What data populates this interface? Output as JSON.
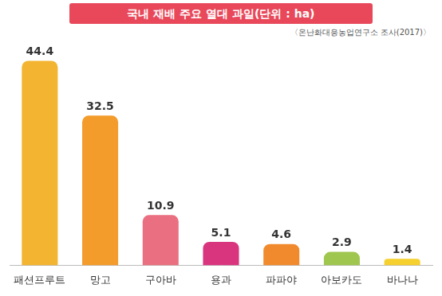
{
  "chart_data": {
    "type": "bar",
    "title": "국내 재배 주요 열대 과일(단위 : ha)",
    "subtitle": "〈온난화대응농업연구소 조사(2017)〉",
    "categories": [
      "패션프루트",
      "망고",
      "구아바",
      "용과",
      "파파야",
      "아보카도",
      "바나나"
    ],
    "values": [
      44.4,
      32.5,
      10.9,
      5.1,
      4.6,
      2.9,
      1.4
    ],
    "colors": [
      "#f2b431",
      "#f39c2b",
      "#ea6f80",
      "#d9347e",
      "#f08a2c",
      "#9fc64e",
      "#f5d02e"
    ],
    "data_labels": true,
    "tick_labels": "x",
    "grid": false
  }
}
